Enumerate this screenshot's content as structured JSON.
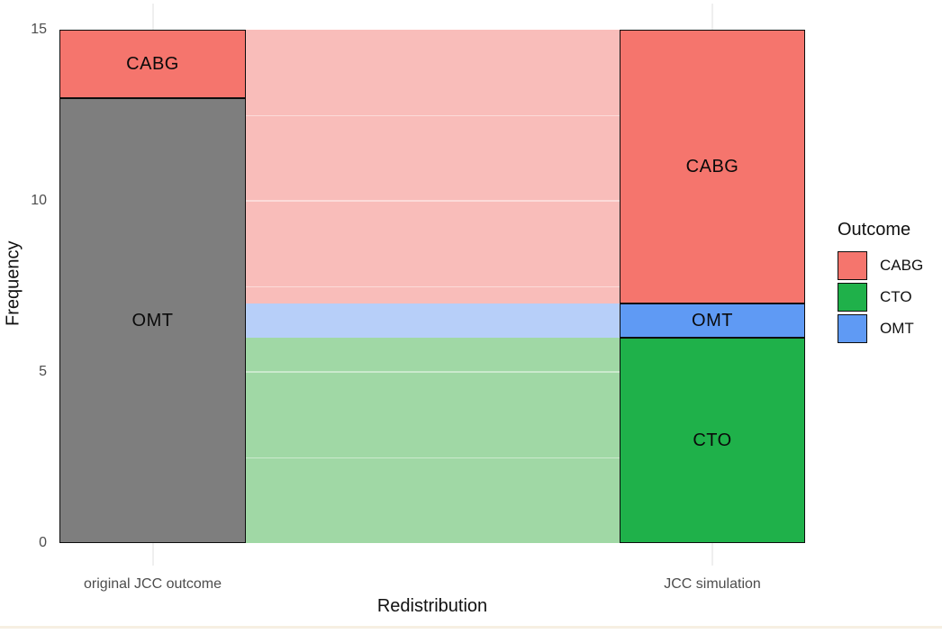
{
  "chart_data": {
    "type": "bar",
    "variant": "stacked-bars-with-flow-bands",
    "title": "",
    "xlabel": "Redistribution",
    "ylabel": "Frequency",
    "ylim": [
      0,
      15
    ],
    "yticks": [
      0,
      5,
      10,
      15
    ],
    "minor_gridlines": [
      2.5,
      7.5,
      12.5
    ],
    "major_gridlines": [
      5,
      10
    ],
    "grid": "on",
    "categories": [
      "original JCC outcome",
      "JCC simulation"
    ],
    "bars": [
      {
        "category": "original JCC outcome",
        "segments": [
          {
            "label": "OMT",
            "value": 13,
            "y0": 0,
            "y1": 13,
            "color": "#7e7e7e"
          },
          {
            "label": "CABG",
            "value": 2,
            "y0": 13,
            "y1": 15,
            "color": "#f5756d"
          }
        ]
      },
      {
        "category": "JCC simulation",
        "segments": [
          {
            "label": "CTO",
            "value": 6,
            "y0": 0,
            "y1": 6,
            "color": "#1fb14a"
          },
          {
            "label": "OMT",
            "value": 1,
            "y0": 6,
            "y1": 7,
            "color": "#5f9af4"
          },
          {
            "label": "CABG",
            "value": 8,
            "y0": 7,
            "y1": 15,
            "color": "#f5756d"
          }
        ]
      }
    ],
    "bands": [
      {
        "name": "CABG-flow",
        "y0": 7,
        "y1": 15,
        "color": "#f9bdba"
      },
      {
        "name": "OMT-flow",
        "y0": 6,
        "y1": 7,
        "color": "#b7cff9"
      },
      {
        "name": "CTO-flow",
        "y0": 0,
        "y1": 6,
        "color": "#a0d8a5"
      }
    ],
    "legend": {
      "title": "Outcome",
      "position": "right",
      "entries": [
        {
          "label": "CABG",
          "color": "#f5756d"
        },
        {
          "label": "CTO",
          "color": "#1fb14a"
        },
        {
          "label": "OMT",
          "color": "#5f9af4"
        }
      ]
    },
    "colors": {
      "background": "#ffffff",
      "grid_vertical": "#efefef",
      "axis_text": "#4d4d4d",
      "title_text": "#111111",
      "bar_border": "#0d0d0d"
    }
  }
}
